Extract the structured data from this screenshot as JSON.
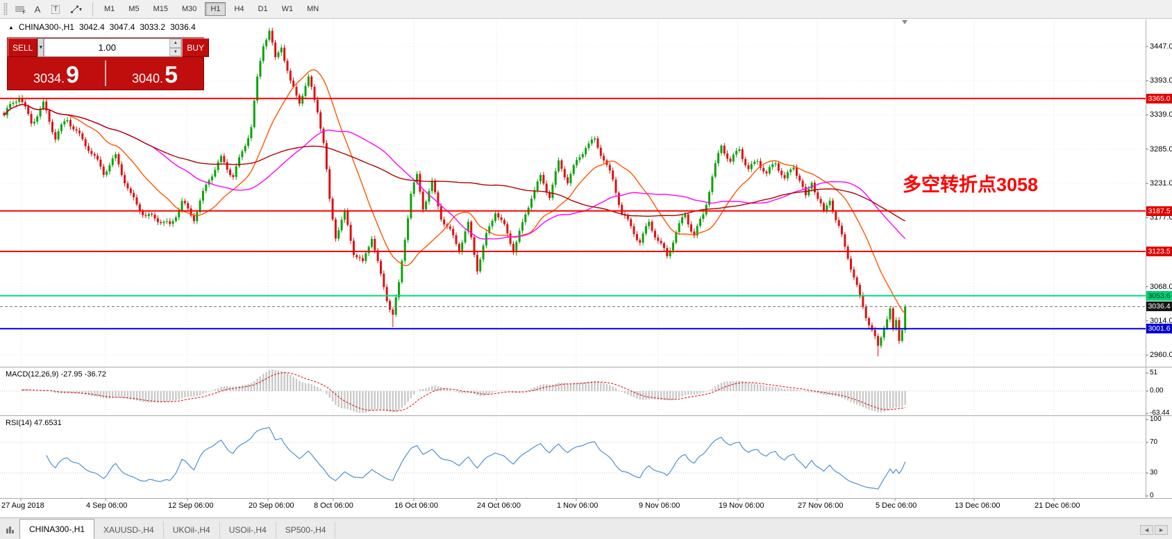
{
  "toolbar": {
    "tools": [
      {
        "name": "fib-grid",
        "glyph": "F"
      },
      {
        "name": "text",
        "glyph": "A"
      },
      {
        "name": "text-label",
        "glyph": "T"
      },
      {
        "name": "drawing",
        "glyph": "▾"
      }
    ],
    "timeframes": [
      {
        "label": "M1"
      },
      {
        "label": "M5"
      },
      {
        "label": "M15"
      },
      {
        "label": "M30"
      },
      {
        "label": "H1",
        "active": true
      },
      {
        "label": "H4"
      },
      {
        "label": "D1"
      },
      {
        "label": "W1"
      },
      {
        "label": "MN"
      }
    ]
  },
  "symbol_header": {
    "arrow": "▲",
    "symbol": "CHINA300-,H1",
    "open": "3042.4",
    "high": "3047.4",
    "low": "3033.2",
    "close": "3036.4"
  },
  "trade_panel": {
    "sell_label": "SELL",
    "buy_label": "BUY",
    "volume": "1.00",
    "sell_price": "3034.",
    "sell_price_big": "9",
    "buy_price": "3040.",
    "buy_price_big": "5"
  },
  "annotation": {
    "text": "多空转折点3058",
    "color": "#ff0000"
  },
  "levels": [
    {
      "text": "3365.0",
      "value": 3365.0,
      "line": "#f40000",
      "label_bg": "#e00000",
      "label_fg": "#ffffff",
      "width": 2
    },
    {
      "text": "3187.5",
      "value": 3187.5,
      "line": "#f40000",
      "label_bg": "#e00000",
      "label_fg": "#ffffff",
      "width": 2
    },
    {
      "text": "3123.5",
      "value": 3123.5,
      "line": "#f40000",
      "label_bg": "#e00000",
      "label_fg": "#ffffff",
      "width": 2
    },
    {
      "text": "3053.6",
      "value": 3053.6,
      "line": "#00dd7a",
      "label_bg": "#00cf74",
      "label_fg": "#013a20",
      "width": 2
    },
    {
      "text": "3036.4",
      "value": 3036.4,
      "line": "#777777",
      "label_bg": "#151515",
      "label_fg": "#ffffff",
      "width": 1,
      "dash": "4,3"
    },
    {
      "text": "3001.6",
      "value": 3001.6,
      "line": "#0000e0",
      "label_bg": "#0000cc",
      "label_fg": "#ffffff",
      "width": 2
    }
  ],
  "axis": {
    "y_ticks": [
      "3447.0",
      "3393.0",
      "3339.0",
      "3285.0",
      "3231.0",
      "3177.0",
      "3068.0",
      "3014.0",
      "2960.0"
    ],
    "x_ticks": [
      {
        "label": "27 Aug 2018",
        "x": 2
      },
      {
        "label": "4 Sep 06:00",
        "x": 124
      },
      {
        "label": "12 Sep 06:00",
        "x": 242
      },
      {
        "label": "20 Sep 06:00",
        "x": 358
      },
      {
        "label": "8 Oct 06:00",
        "x": 452
      },
      {
        "label": "16 Oct 06:00",
        "x": 568
      },
      {
        "label": "24 Oct 06:00",
        "x": 687
      },
      {
        "label": "1 Nov 06:00",
        "x": 802
      },
      {
        "label": "9 Nov 06:00",
        "x": 920
      },
      {
        "label": "19 Nov 06:00",
        "x": 1035
      },
      {
        "label": "27 Nov 06:00",
        "x": 1149
      },
      {
        "label": "5 Dec 06:00",
        "x": 1261
      },
      {
        "label": "13 Dec 06:00",
        "x": 1375
      },
      {
        "label": "21 Dec 06:00",
        "x": 1490
      }
    ]
  },
  "macd": {
    "label": "MACD(12,26,9) -27.95 -36.72",
    "ticks": [
      "51",
      "0.00",
      "-63.44"
    ],
    "tick_values": [
      51,
      0,
      -63.44
    ]
  },
  "rsi": {
    "label": "RSI(14) 47.6531",
    "ticks": [
      "100",
      "70",
      "30",
      "0"
    ],
    "tick_values": [
      100,
      70,
      30,
      0
    ],
    "levels": [
      70,
      30
    ]
  },
  "tabs": [
    {
      "label": "CHINA300-,H1",
      "active": true
    },
    {
      "label": "XAUUSD-,H4"
    },
    {
      "label": "UKOil-,H4"
    },
    {
      "label": "USOil-,H4"
    },
    {
      "label": "SP500-,H4"
    }
  ],
  "chart_data": {
    "type": "candlestick",
    "symbol": "CHINA300-",
    "timeframe": "H1",
    "time_span": "27 Aug 2018 - 21 Dec 2018 (chart shift space at right)",
    "visible_price_range": [
      2943,
      3490
    ],
    "n_candles": 300,
    "price_path_waypoints": [
      [
        0,
        3335
      ],
      [
        5,
        3370
      ],
      [
        9,
        3330
      ],
      [
        13,
        3356
      ],
      [
        17,
        3300
      ],
      [
        21,
        3332
      ],
      [
        28,
        3290
      ],
      [
        33,
        3245
      ],
      [
        37,
        3270
      ],
      [
        42,
        3215
      ],
      [
        47,
        3180
      ],
      [
        55,
        3162
      ],
      [
        59,
        3205
      ],
      [
        63,
        3178
      ],
      [
        68,
        3235
      ],
      [
        72,
        3268
      ],
      [
        76,
        3246
      ],
      [
        82,
        3320
      ],
      [
        84,
        3392
      ],
      [
        86,
        3448
      ],
      [
        88,
        3470
      ],
      [
        90,
        3426
      ],
      [
        92,
        3452
      ],
      [
        95,
        3392
      ],
      [
        98,
        3362
      ],
      [
        101,
        3392
      ],
      [
        104,
        3345
      ],
      [
        106,
        3292
      ],
      [
        108,
        3205
      ],
      [
        110,
        3152
      ],
      [
        113,
        3186
      ],
      [
        116,
        3122
      ],
      [
        119,
        3100
      ],
      [
        122,
        3146
      ],
      [
        125,
        3085
      ],
      [
        127,
        3052
      ],
      [
        129,
        3028
      ],
      [
        131,
        3072
      ],
      [
        133,
        3145
      ],
      [
        135,
        3212
      ],
      [
        137,
        3238
      ],
      [
        139,
        3192
      ],
      [
        142,
        3232
      ],
      [
        145,
        3182
      ],
      [
        148,
        3156
      ],
      [
        151,
        3126
      ],
      [
        154,
        3162
      ],
      [
        157,
        3096
      ],
      [
        160,
        3150
      ],
      [
        163,
        3192
      ],
      [
        166,
        3162
      ],
      [
        169,
        3124
      ],
      [
        172,
        3162
      ],
      [
        175,
        3212
      ],
      [
        178,
        3243
      ],
      [
        181,
        3215
      ],
      [
        184,
        3262
      ],
      [
        187,
        3232
      ],
      [
        190,
        3262
      ],
      [
        193,
        3292
      ],
      [
        196,
        3302
      ],
      [
        199,
        3272
      ],
      [
        202,
        3232
      ],
      [
        205,
        3182
      ],
      [
        208,
        3160
      ],
      [
        211,
        3142
      ],
      [
        214,
        3172
      ],
      [
        217,
        3142
      ],
      [
        220,
        3112
      ],
      [
        223,
        3152
      ],
      [
        226,
        3182
      ],
      [
        229,
        3152
      ],
      [
        232,
        3185
      ],
      [
        235,
        3240
      ],
      [
        238,
        3288
      ],
      [
        241,
        3262
      ],
      [
        244,
        3288
      ],
      [
        247,
        3255
      ],
      [
        250,
        3270
      ],
      [
        253,
        3242
      ],
      [
        256,
        3262
      ],
      [
        259,
        3235
      ],
      [
        262,
        3262
      ],
      [
        264,
        3240
      ],
      [
        266,
        3210
      ],
      [
        268,
        3236
      ],
      [
        270,
        3205
      ],
      [
        272,
        3180
      ],
      [
        274,
        3205
      ],
      [
        276,
        3172
      ],
      [
        278,
        3148
      ],
      [
        280,
        3120
      ],
      [
        282,
        3085
      ],
      [
        284,
        3052
      ],
      [
        286,
        3022
      ],
      [
        288,
        2995
      ],
      [
        290,
        2968
      ],
      [
        292,
        3005
      ],
      [
        294,
        3032
      ],
      [
        295,
        2998
      ],
      [
        296,
        3015
      ],
      [
        297,
        2988
      ],
      [
        298,
        3008
      ],
      [
        299,
        3036
      ]
    ],
    "spike_lows": [
      [
        129,
        3004
      ],
      [
        290,
        2958
      ]
    ],
    "last_close": 3036.4,
    "horizontal_levels": [
      3365.0,
      3187.5,
      3123.5,
      3053.6,
      3036.4,
      3001.6
    ],
    "colors": {
      "up": "#0ca30c",
      "down": "#dd1111",
      "ma_fast": "#ff5500",
      "ma_mid": "#ff00ff",
      "ma_slow": "#b00000",
      "macd_hist": "#c9c9c9",
      "macd_signal": "#e00000",
      "rsi_line": "#4f8fd0"
    },
    "indicators": {
      "moving_averages": [
        20,
        50,
        100
      ],
      "macd": {
        "fast": 12,
        "slow": 26,
        "signal": 9,
        "current_macd": -27.95,
        "current_signal": -36.72
      },
      "rsi": {
        "period": 14,
        "current": 47.6531,
        "levels": [
          70,
          30
        ]
      }
    }
  }
}
